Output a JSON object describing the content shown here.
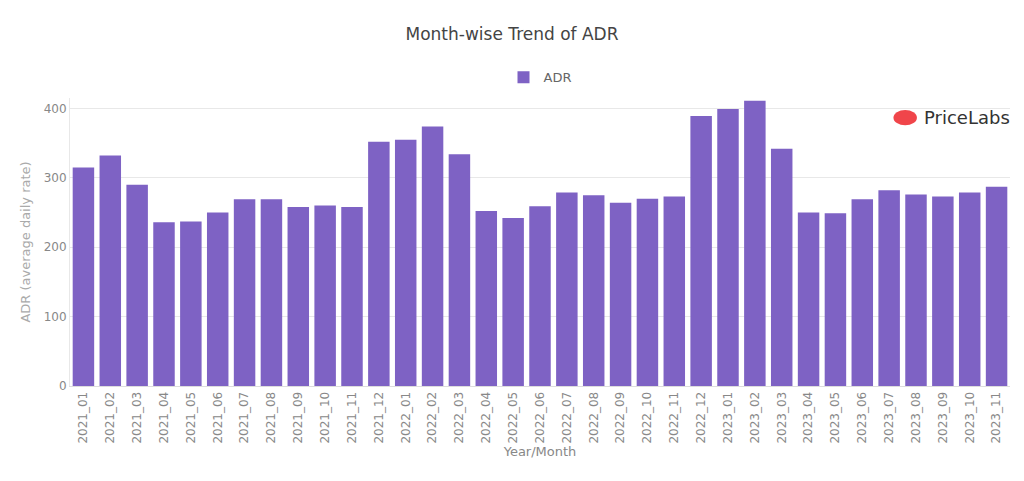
{
  "chart_data": {
    "type": "bar",
    "title": "Month-wise Trend of ADR",
    "x_label": "Year/Month",
    "y_label": "ADR (average daily rate)",
    "logo": "PriceLabs",
    "categories": [
      "2021_01",
      "2021_02",
      "2021_03",
      "2021_04",
      "2021_05",
      "2021_06",
      "2021_07",
      "2021_08",
      "2021_09",
      "2021_10",
      "2021_11",
      "2021_12",
      "2022_01",
      "2022_02",
      "2022_03",
      "2022_04",
      "2022_05",
      "2022_06",
      "2022_07",
      "2022_08",
      "2022_09",
      "2022_10",
      "2022_11",
      "2022_12",
      "2023_01",
      "2023_02",
      "2023_03",
      "2023_04",
      "2023_05",
      "2023_06",
      "2023_07",
      "2023_08",
      "2023_09",
      "2023_10",
      "2023_11"
    ],
    "series": [
      {
        "name": "ADR",
        "color": "#7e62c4",
        "values": [
          315,
          332,
          290,
          236,
          237,
          250,
          269,
          269,
          258,
          260,
          258,
          352,
          355,
          374,
          334,
          252,
          242,
          259,
          279,
          275,
          264,
          270,
          273,
          389,
          399,
          411,
          342,
          250,
          249,
          269,
          282,
          276,
          273,
          279,
          287
        ]
      }
    ],
    "ylim": [
      0,
      415
    ],
    "yticks": [
      0,
      100,
      200,
      300,
      400
    ],
    "grid": true,
    "legend": "top"
  }
}
